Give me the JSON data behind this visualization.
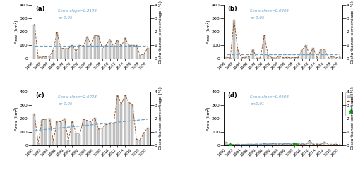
{
  "years": [
    1990,
    1991,
    1992,
    1993,
    1994,
    1995,
    1996,
    1997,
    1998,
    1999,
    2000,
    2001,
    2002,
    2003,
    2004,
    2005,
    2006,
    2007,
    2008,
    2009,
    2010,
    2011,
    2012,
    2013,
    2014,
    2015,
    2016,
    2017,
    2018,
    2019,
    2020
  ],
  "a_area": [
    255,
    10,
    12,
    15,
    18,
    65,
    195,
    80,
    75,
    75,
    100,
    55,
    100,
    95,
    165,
    100,
    175,
    170,
    75,
    100,
    145,
    90,
    140,
    90,
    155,
    100,
    100,
    100,
    25,
    35,
    80
  ],
  "a_pct": [
    2.6,
    0.1,
    0.12,
    0.15,
    0.18,
    0.65,
    1.95,
    0.8,
    0.75,
    0.75,
    1.0,
    0.55,
    1.0,
    0.95,
    1.65,
    1.0,
    1.75,
    1.7,
    0.75,
    1.0,
    1.45,
    0.9,
    1.4,
    0.9,
    1.55,
    1.0,
    1.0,
    1.0,
    0.25,
    0.35,
    0.8
  ],
  "a_slope": "Sen's slope=0.2196",
  "a_p": "p>0.05",
  "a_trend_y": [
    0.97,
    0.97
  ],
  "b_area": [
    10,
    5,
    290,
    65,
    8,
    10,
    15,
    70,
    5,
    8,
    175,
    25,
    8,
    5,
    20,
    8,
    10,
    8,
    8,
    10,
    65,
    100,
    35,
    80,
    8,
    70,
    70,
    8,
    15,
    8,
    12
  ],
  "b_pct": [
    0.1,
    0.05,
    2.9,
    0.65,
    0.08,
    0.1,
    0.15,
    0.7,
    0.05,
    0.08,
    1.75,
    0.25,
    0.08,
    0.05,
    0.2,
    0.08,
    0.1,
    0.08,
    0.08,
    0.1,
    0.65,
    1.0,
    0.35,
    0.8,
    0.08,
    0.7,
    0.7,
    0.08,
    0.15,
    0.08,
    0.12
  ],
  "b_slope": "Sen's slpoe=0.0405",
  "b_p": "p>0.05",
  "b_trend_y": [
    0.33,
    0.33
  ],
  "c_area": [
    235,
    15,
    190,
    195,
    200,
    30,
    180,
    175,
    200,
    35,
    180,
    95,
    80,
    195,
    185,
    175,
    205,
    120,
    130,
    155,
    160,
    165,
    375,
    305,
    375,
    320,
    300,
    45,
    35,
    95,
    130
  ],
  "c_pct": [
    2.35,
    0.15,
    1.9,
    1.95,
    2.0,
    0.3,
    1.8,
    1.75,
    2.0,
    0.35,
    1.8,
    0.95,
    0.8,
    1.95,
    1.85,
    1.75,
    2.05,
    1.2,
    1.3,
    1.55,
    1.6,
    1.65,
    3.75,
    3.05,
    3.75,
    3.2,
    3.0,
    0.45,
    0.35,
    0.95,
    1.3
  ],
  "c_slope": "Sen's slpoe=2.6093",
  "c_p": "p>0.05",
  "c_trend_y": [
    1.1,
    1.95
  ],
  "d_area": [
    25,
    3,
    5,
    8,
    3,
    5,
    8,
    5,
    8,
    5,
    12,
    8,
    12,
    10,
    10,
    8,
    12,
    8,
    10,
    8,
    8,
    8,
    35,
    8,
    8,
    8,
    25,
    5,
    5,
    8,
    5
  ],
  "d_pct": [
    0.25,
    0.03,
    0.05,
    0.08,
    0.03,
    0.05,
    0.08,
    0.05,
    0.08,
    0.05,
    0.12,
    0.08,
    0.12,
    0.1,
    0.1,
    0.08,
    0.12,
    0.08,
    0.1,
    0.08,
    0.08,
    0.08,
    0.35,
    0.08,
    0.08,
    0.08,
    0.25,
    0.05,
    0.05,
    0.08,
    0.05
  ],
  "d_slope": "Sen's slpoe=0.9606",
  "d_p": "p<0.01",
  "d_trend_y": [
    0.05,
    0.18
  ],
  "d_breakpoints": [
    1991,
    2008
  ],
  "bar_color": "#c8c8c8",
  "bar_edge": "#999999",
  "pct_line_color": "#8B4513",
  "trend_color": "#6aa0c8",
  "annotation_color": "#6aa0c8",
  "ylabel_left": "Area (km²)",
  "ylabel_right": "Disturbance percentage (%)",
  "ylim_area": [
    0,
    400
  ],
  "ylim_pct": [
    0,
    4
  ],
  "yticks_area": [
    0,
    100,
    200,
    300,
    400
  ],
  "yticks_pct": [
    0,
    1,
    2,
    3,
    4
  ],
  "tick_years": [
    1990,
    1992,
    1994,
    1996,
    1998,
    2000,
    2002,
    2004,
    2006,
    2008,
    2010,
    2012,
    2014,
    2016,
    2018,
    2020
  ]
}
